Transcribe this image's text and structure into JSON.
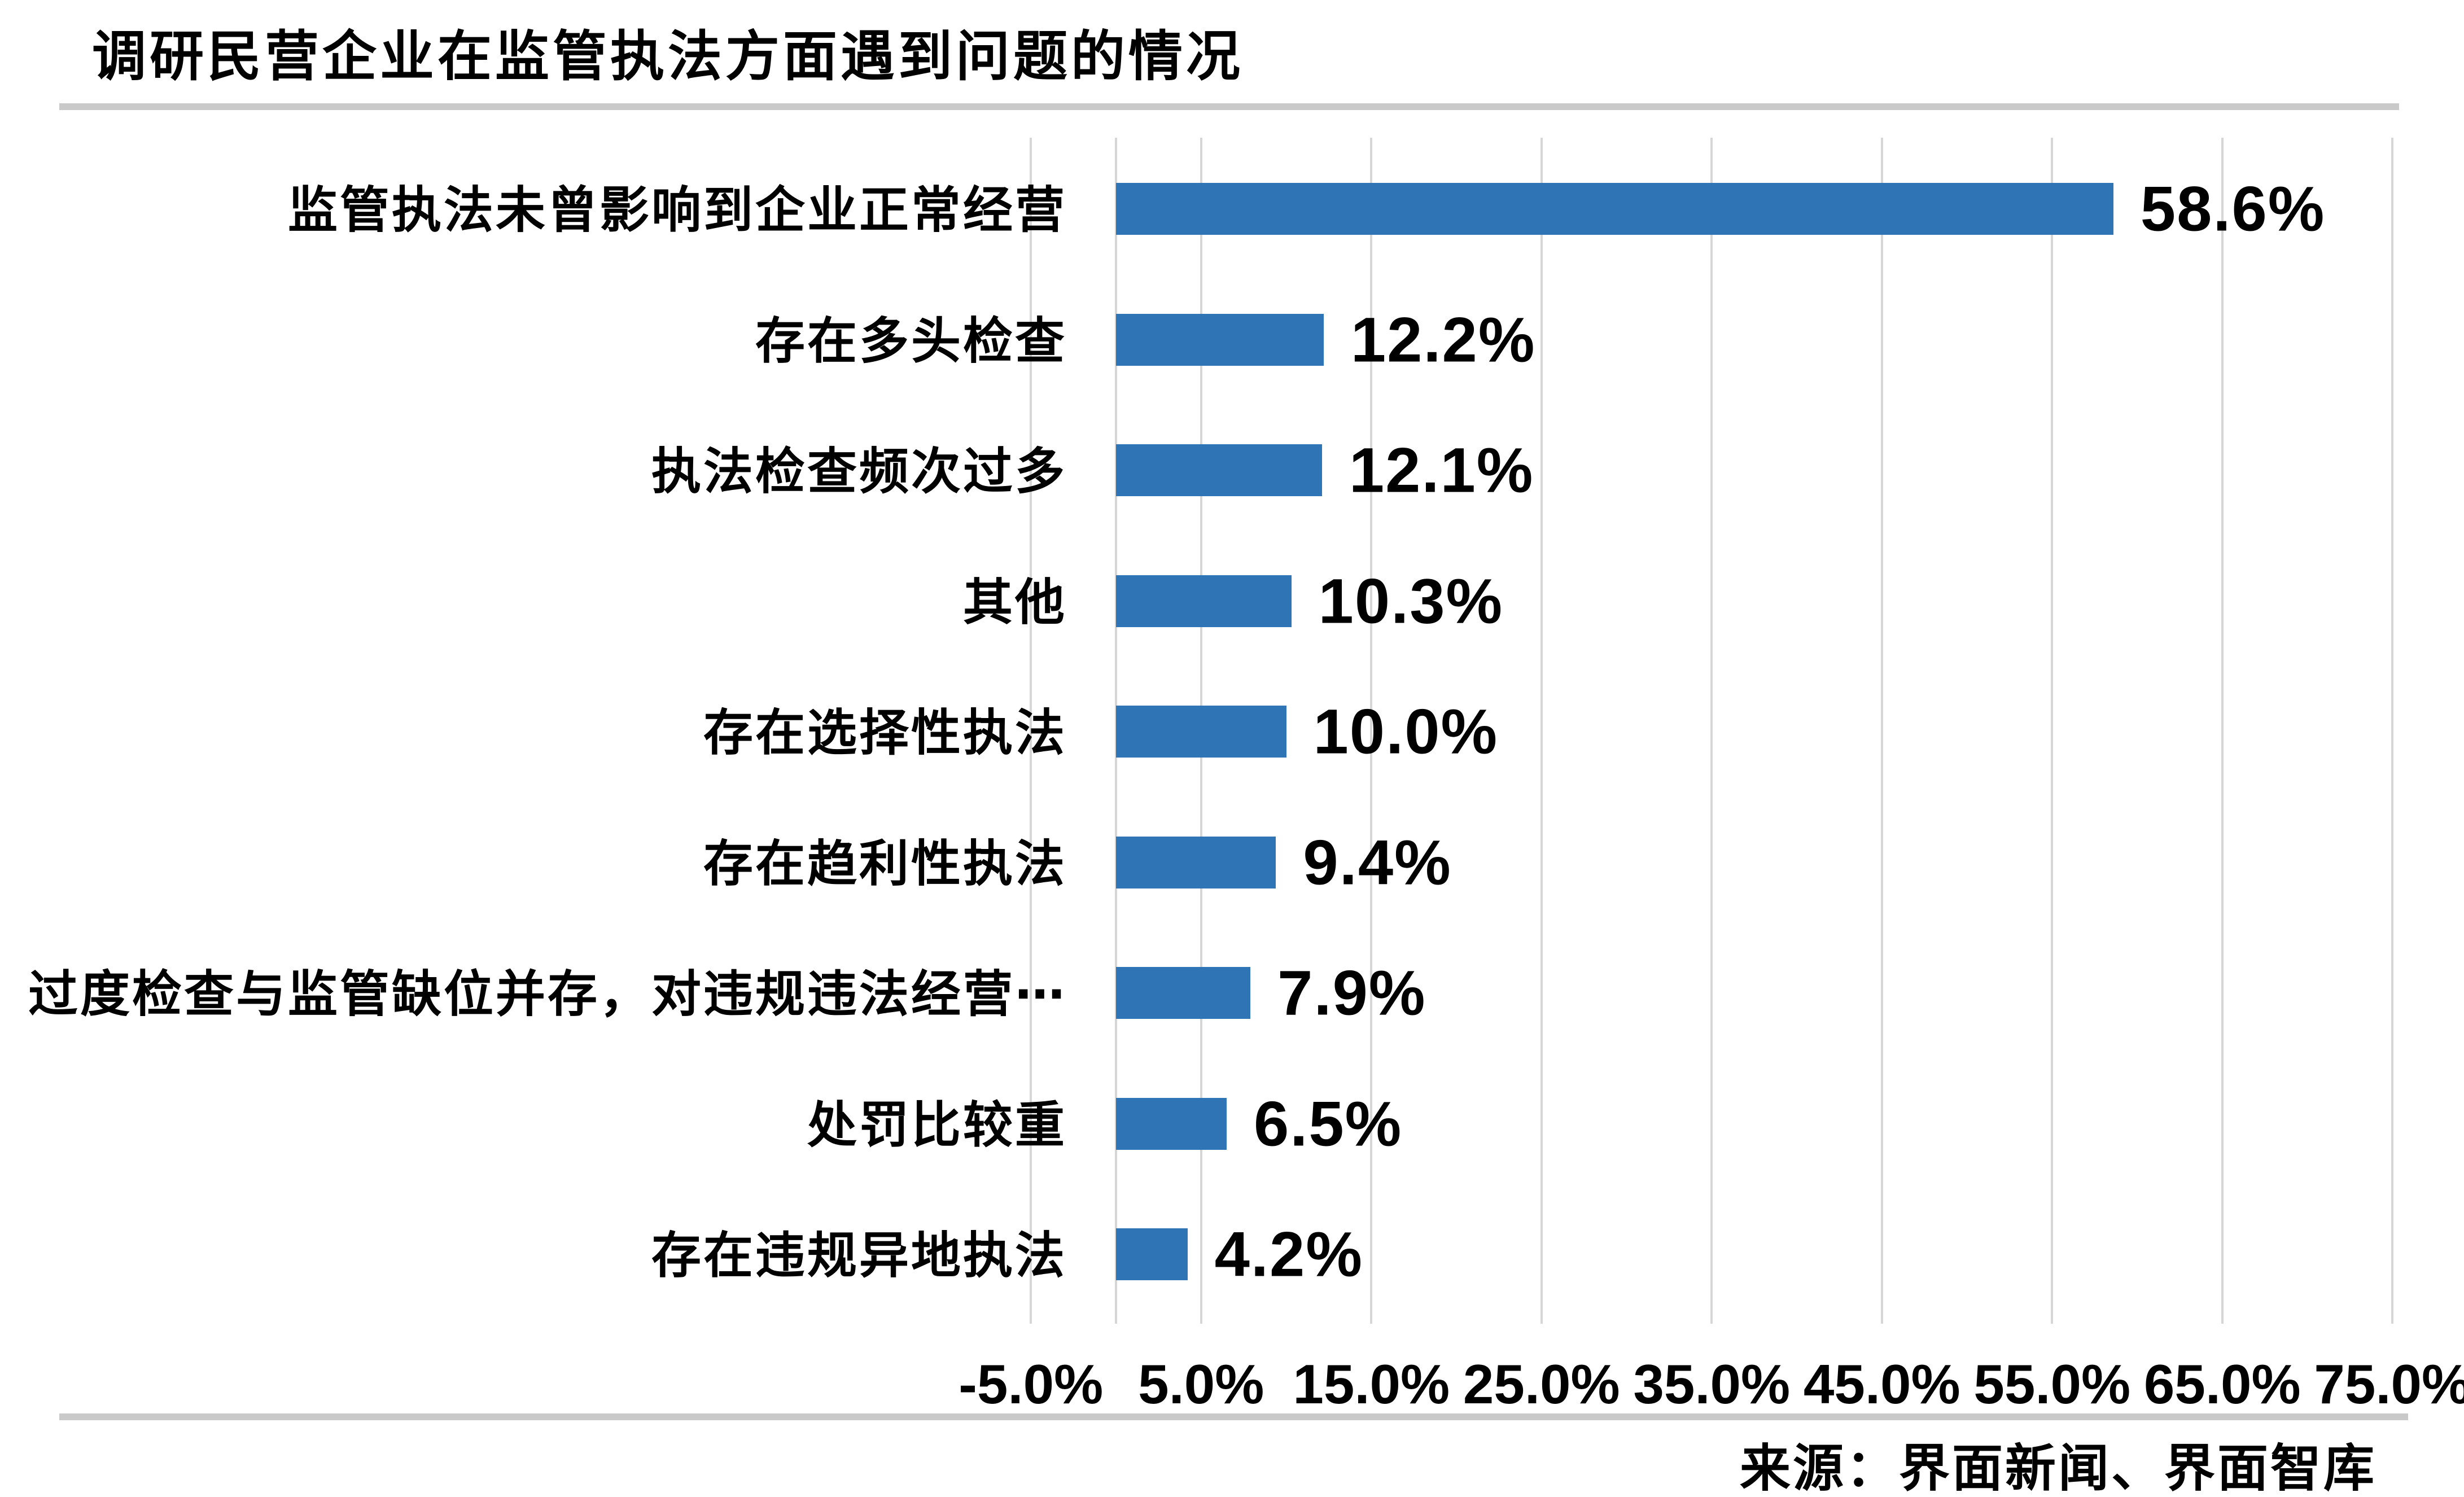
{
  "header": {
    "title": "调研民营企业在监管执法方面遇到问题的情况"
  },
  "footer": {
    "source": "来源：界面新闻、界面智库"
  },
  "colors": {
    "bar": "#2F75B5",
    "gridline": "#D6D6D6",
    "separator": "#C9C9C9",
    "text": "#000000"
  },
  "chart_data": {
    "type": "bar",
    "orientation": "horizontal",
    "title": "调研民营企业在监管执法方面遇到问题的情况",
    "categories": [
      "监管执法未曾影响到企业正常经营",
      "存在多头检查",
      "执法检查频次过多",
      "其他",
      "存在选择性执法",
      "存在趋利性执法",
      "过度检查与监管缺位并存，对违规违法经营⋯",
      "处罚比较重",
      "存在违规异地执法"
    ],
    "values": [
      58.6,
      12.2,
      12.1,
      10.3,
      10.0,
      9.4,
      7.9,
      6.5,
      4.2
    ],
    "value_labels": [
      "58.6%",
      "12.2%",
      "12.1%",
      "10.3%",
      "10.0%",
      "9.4%",
      "7.9%",
      "6.5%",
      "4.2%"
    ],
    "x_tick_labels": [
      "-5.0%",
      "5.0%",
      "15.0%",
      "25.0%",
      "35.0%",
      "45.0%",
      "55.0%",
      "65.0%",
      "75.0%"
    ],
    "x_tick_values": [
      -5,
      5,
      15,
      25,
      35,
      45,
      55,
      65,
      75
    ],
    "xlim": [
      -5,
      75
    ],
    "grid": "vertical-major",
    "legend": "none",
    "xlabel": "",
    "ylabel": "",
    "source": "来源：界面新闻、界面智库"
  }
}
